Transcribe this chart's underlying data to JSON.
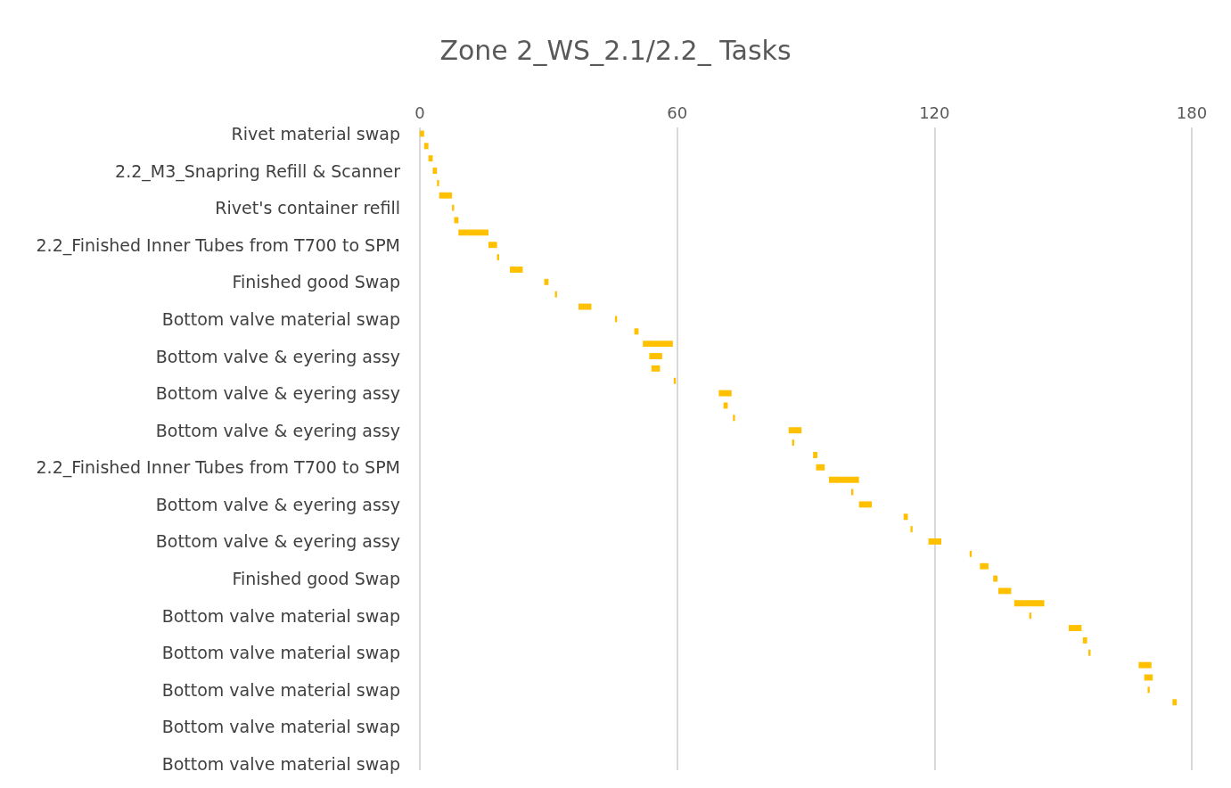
{
  "chart_data": {
    "type": "bar",
    "orientation": "horizontal",
    "title": "Zone 2_WS_2.1/2.2_ Tasks",
    "categories": [
      "Rivet material swap",
      null,
      null,
      "2.2_M3_Snapring Refill & Scanner",
      null,
      null,
      "Rivet's container refill",
      null,
      null,
      "2.2_Finished Inner Tubes from T700 to SPM",
      null,
      null,
      "Finished good Swap",
      null,
      null,
      "Bottom valve material swap",
      null,
      null,
      "Bottom valve & eyering assy",
      null,
      null,
      "Bottom valve & eyering assy",
      null,
      null,
      "Bottom valve & eyering assy",
      null,
      null,
      "2.2_Finished Inner Tubes from T700 to SPM",
      null,
      null,
      "Bottom valve & eyering assy",
      null,
      null,
      "Bottom valve & eyering assy",
      null,
      null,
      "Finished good Swap",
      null,
      null,
      "Bottom valve material swap",
      null,
      null,
      "Bottom valve material swap",
      null,
      null,
      "Bottom valve material swap",
      null,
      null,
      "Bottom valve material swap",
      null,
      null,
      "Bottom valve material swap"
    ],
    "base": [
      0,
      1,
      2,
      3,
      4,
      4.5,
      7.5,
      8,
      9,
      16,
      18,
      21,
      29,
      31.5,
      37,
      45.5,
      50,
      52,
      53.5,
      54,
      59.2,
      69.7,
      70.8,
      73,
      86,
      86.8,
      91.7,
      92.4,
      95.4,
      100.6,
      102.4,
      112.8,
      114.4,
      118.6,
      128.2,
      130.6,
      133.7,
      134.9,
      138.6,
      142.1,
      151.3,
      154.6,
      155.9,
      167.6,
      168.9,
      169.7,
      175.5,
      null,
      null,
      null,
      null,
      null
    ],
    "values": [
      1,
      1,
      1,
      1,
      0.5,
      3,
      0.5,
      1,
      7,
      2,
      0.5,
      3,
      1,
      0.5,
      3,
      0.5,
      1,
      7,
      3,
      2,
      0.5,
      3,
      1,
      0.5,
      3,
      0.5,
      1,
      2,
      7,
      0.5,
      3,
      1,
      0.5,
      3,
      0.5,
      2,
      1,
      3,
      7,
      0.5,
      3,
      1,
      0.5,
      3,
      2,
      0.5,
      1,
      null,
      null,
      null,
      null,
      null
    ],
    "color": "#ffc000",
    "xlim": [
      0,
      180
    ],
    "xticks": [
      0,
      60,
      120,
      180
    ],
    "grid": "x"
  }
}
